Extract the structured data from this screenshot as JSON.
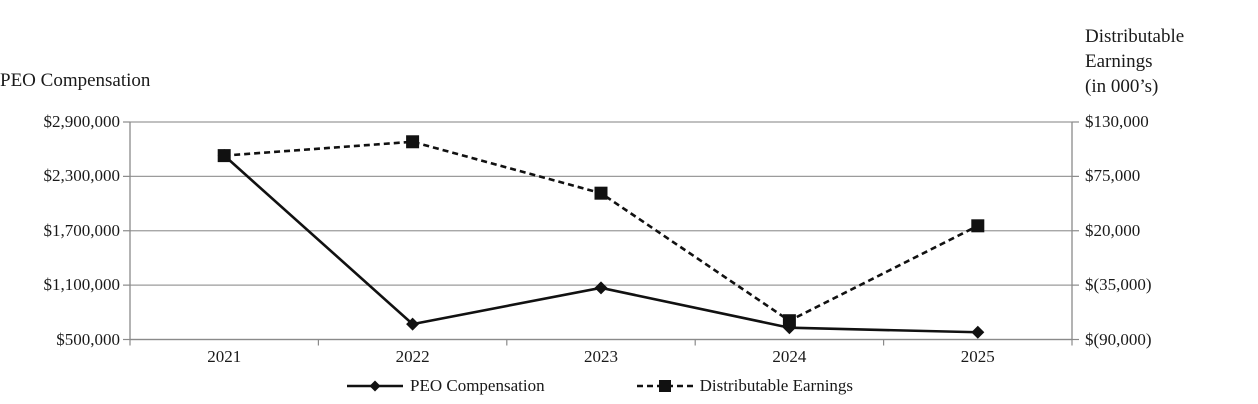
{
  "titles": {
    "left_axis_title": "PEO Compensation",
    "right_axis_title_lines": [
      "Distributable",
      "Earnings",
      "(in 000’s)"
    ]
  },
  "legend": {
    "items": [
      {
        "label": "PEO Compensation",
        "marker": "diamond-icon",
        "line": "solid"
      },
      {
        "label": "Distributable Earnings",
        "marker": "square-icon",
        "line": "dashed"
      }
    ]
  },
  "chart_data": {
    "type": "line",
    "categories": [
      "2021",
      "2022",
      "2023",
      "2024",
      "2025"
    ],
    "series": [
      {
        "name": "PEO Compensation",
        "axis": "left",
        "line": "solid",
        "marker": "diamond",
        "values": [
          2530000,
          670000,
          1070000,
          630000,
          580000
        ]
      },
      {
        "name": "Distributable Earnings",
        "axis": "right",
        "line": "dashed",
        "marker": "square",
        "values": [
          96000,
          110000,
          58000,
          -71000,
          25000
        ]
      }
    ],
    "left_axis": {
      "title": "PEO Compensation",
      "tick_labels": [
        "$2,900,000",
        "$2,300,000",
        "$1,700,000",
        "$1,100,000",
        "$500,000"
      ],
      "tick_values": [
        2900000,
        2300000,
        1700000,
        1100000,
        500000
      ],
      "range": [
        500000,
        2900000
      ]
    },
    "right_axis": {
      "title": "Distributable Earnings (in 000’s)",
      "tick_labels": [
        "$130,000",
        "$75,000",
        "$20,000",
        "$(35,000)",
        "$(90,000)"
      ],
      "tick_values": [
        130000,
        75000,
        20000,
        -35000,
        -90000
      ],
      "range": [
        -90000,
        130000
      ]
    },
    "grid": true,
    "legend_position": "bottom",
    "colors": {
      "series": "#111111",
      "gridline": "#9b9b9b",
      "axis": "#8a8a8a",
      "text": "#1a1a1a",
      "background": "#ffffff"
    }
  }
}
